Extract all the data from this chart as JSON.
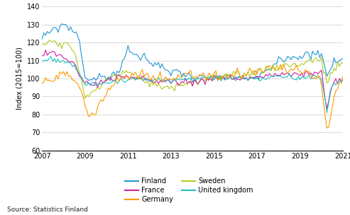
{
  "title": "",
  "ylabel": "Index (2015=100)",
  "ylim": [
    60,
    140
  ],
  "yticks": [
    60,
    70,
    80,
    90,
    100,
    110,
    120,
    130,
    140
  ],
  "xlim": [
    2007.0,
    2021.0
  ],
  "xticks": [
    2007,
    2009,
    2011,
    2013,
    2015,
    2017,
    2019,
    2021
  ],
  "source_text": "Source: Statistics Finland",
  "colors": {
    "Finland": "#2196d4",
    "Sweden": "#b0cc20",
    "France": "#d020a0",
    "United kingdom": "#20c0c0",
    "Germany": "#ff9900"
  },
  "linewidth": 0.8,
  "background_color": "#ffffff",
  "grid_color": "#cccccc"
}
